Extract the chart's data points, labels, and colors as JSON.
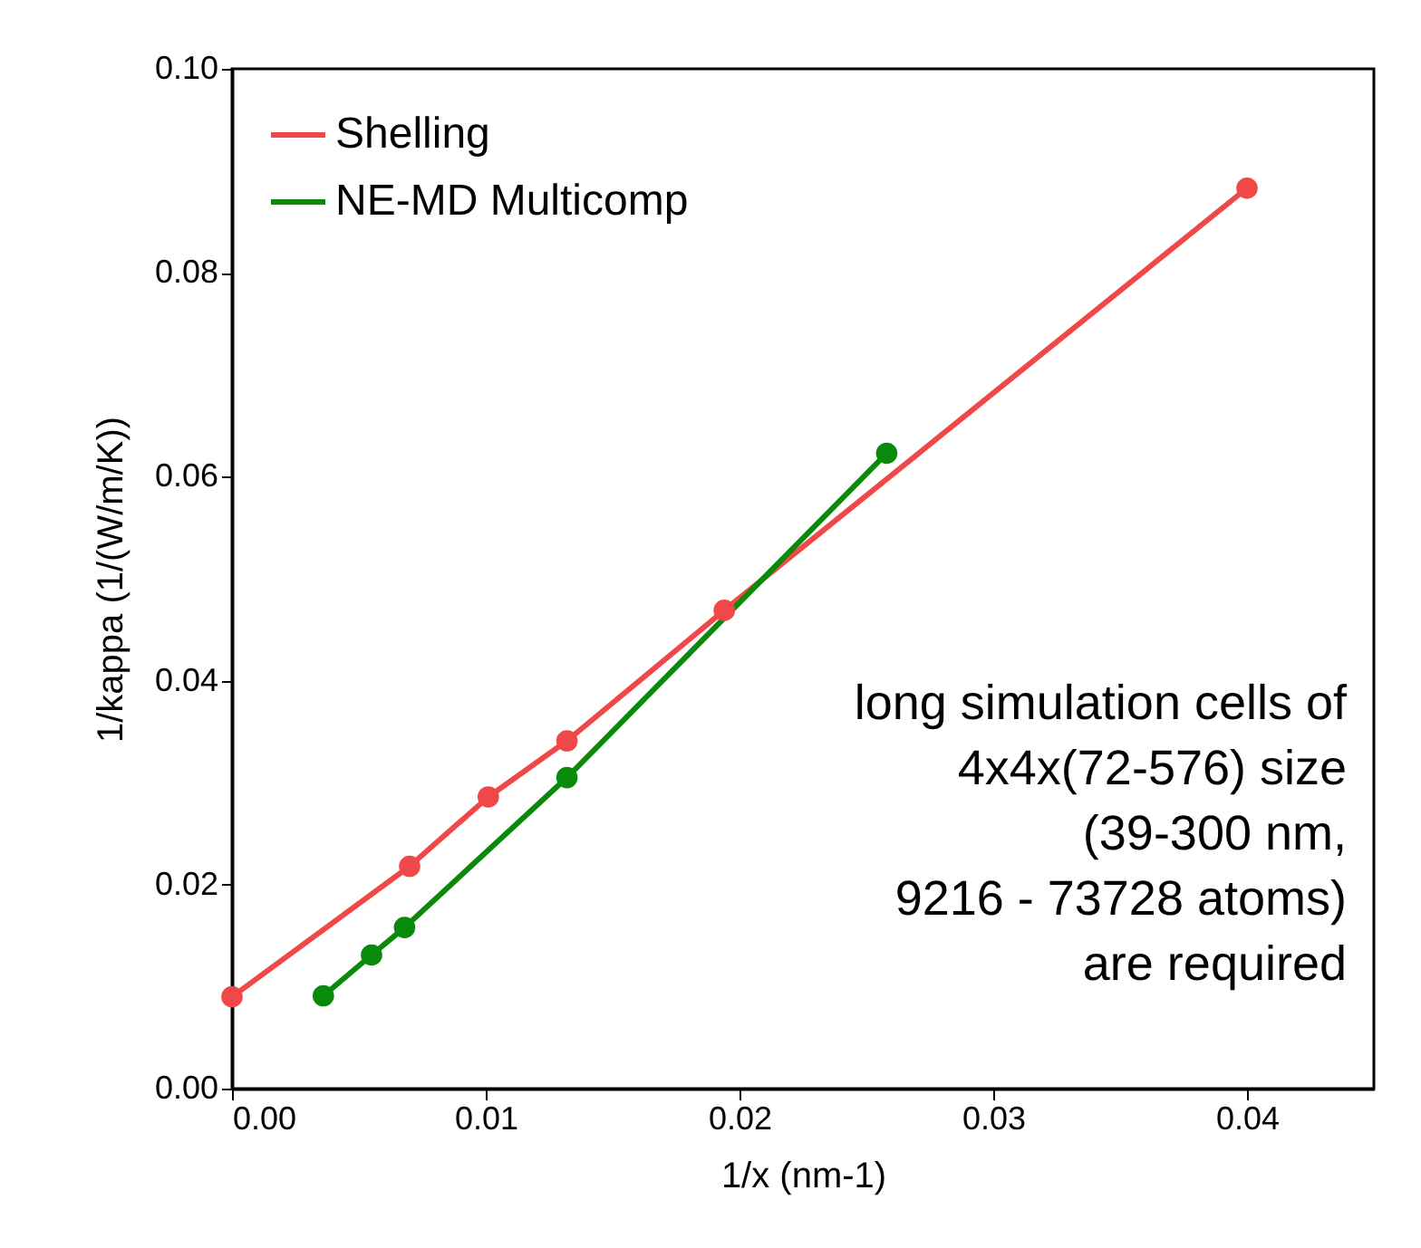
{
  "chart_data": {
    "type": "line",
    "xlabel": "1/x (nm-1)",
    "ylabel": "1/kappa (1/(W/m/K))",
    "xlim": [
      0,
      0.045
    ],
    "ylim": [
      0,
      0.1
    ],
    "xticks": [
      {
        "value": 0,
        "label": "0.00"
      },
      {
        "value": 0.01,
        "label": "0.01"
      },
      {
        "value": 0.02,
        "label": "0.02"
      },
      {
        "value": 0.03,
        "label": "0.03"
      },
      {
        "value": 0.04,
        "label": "0.04"
      }
    ],
    "yticks": [
      {
        "value": 0,
        "label": "0.00"
      },
      {
        "value": 0.02,
        "label": "0.02"
      },
      {
        "value": 0.04,
        "label": "0.04"
      },
      {
        "value": 0.06,
        "label": "0.06"
      },
      {
        "value": 0.08,
        "label": "0.08"
      },
      {
        "value": 0.1,
        "label": "0.10"
      }
    ],
    "series": [
      {
        "name": "Shelling",
        "color": "#f04848",
        "x": [
          0,
          0.007,
          0.0101,
          0.0132,
          0.0194,
          0.04
        ],
        "values": [
          0.009,
          0.0218,
          0.0286,
          0.0341,
          0.0469,
          0.0883
        ]
      },
      {
        "name": "NE-MD Multicomp",
        "color": "#0a8a0a",
        "x": [
          0.0036,
          0.0055,
          0.0068,
          0.0132,
          0.0258
        ],
        "values": [
          0.0091,
          0.0131,
          0.0158,
          0.0305,
          0.0623
        ]
      }
    ],
    "annotations": [
      "long simulation cells of\n4x4x(72-576) size\n(39-300 nm,\n9216 - 73728 atoms)\nare required"
    ],
    "grid": false,
    "legend": "top left",
    "marker": "circle",
    "line_style": "solid"
  }
}
